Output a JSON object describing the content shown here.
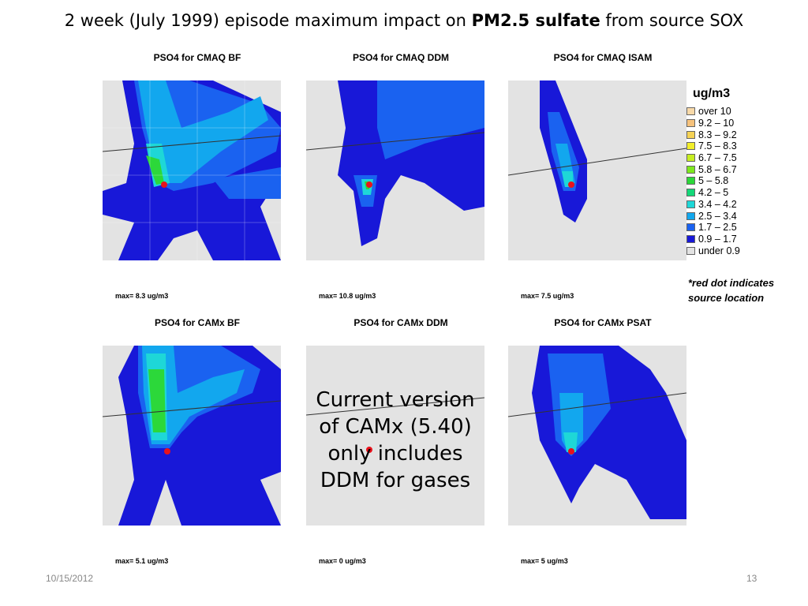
{
  "slide": {
    "title_part1": "2 week (July 1999) episode maximum impact on ",
    "title_bold": "PM2.5 sulfate",
    "title_part2": " from source SOX",
    "footer_date": "10/15/2012",
    "footer_page": "13",
    "note_line1": "*red dot indicates",
    "note_line2": "source location",
    "overlay_text": "Current version of CAMx (5.40) only includes DDM for gases"
  },
  "panels": [
    {
      "title": "PSO4 for CMAQ BF",
      "max": "max= 8.3 ug/m3"
    },
    {
      "title": "PSO4 for CMAQ DDM",
      "max": "max= 10.8 ug/m3"
    },
    {
      "title": "PSO4 for CMAQ ISAM",
      "max": "max= 7.5 ug/m3"
    },
    {
      "title": "PSO4 for CAMx BF",
      "max": "max= 5.1 ug/m3"
    },
    {
      "title": "PSO4 for CAMx DDM",
      "max": "max= 0 ug/m3"
    },
    {
      "title": "PSO4 for CAMx PSAT",
      "max": "max= 5 ug/m3"
    }
  ],
  "legend": {
    "title": "ug/m3",
    "items": [
      {
        "label": "over 10",
        "color": "#f8d9a8"
      },
      {
        "label": "9.2 – 10",
        "color": "#f6c27c"
      },
      {
        "label": "8.3 – 9.2",
        "color": "#f5d255"
      },
      {
        "label": "7.5 – 8.3",
        "color": "#f2ee2a"
      },
      {
        "label": "6.7 – 7.5",
        "color": "#c6ee22"
      },
      {
        "label": "5.8 – 6.7",
        "color": "#7ee81e"
      },
      {
        "label": "5 – 5.8",
        "color": "#2cd83a"
      },
      {
        "label": "4.2 – 5",
        "color": "#14d878"
      },
      {
        "label": "3.4 – 4.2",
        "color": "#1ed7d7"
      },
      {
        "label": "2.5 – 3.4",
        "color": "#12a7ee"
      },
      {
        "label": "1.7 – 2.5",
        "color": "#1a62f0"
      },
      {
        "label": "0.9 – 1.7",
        "color": "#1818d8"
      },
      {
        "label": "under 0.9",
        "color": "#e3e3e3"
      }
    ]
  }
}
